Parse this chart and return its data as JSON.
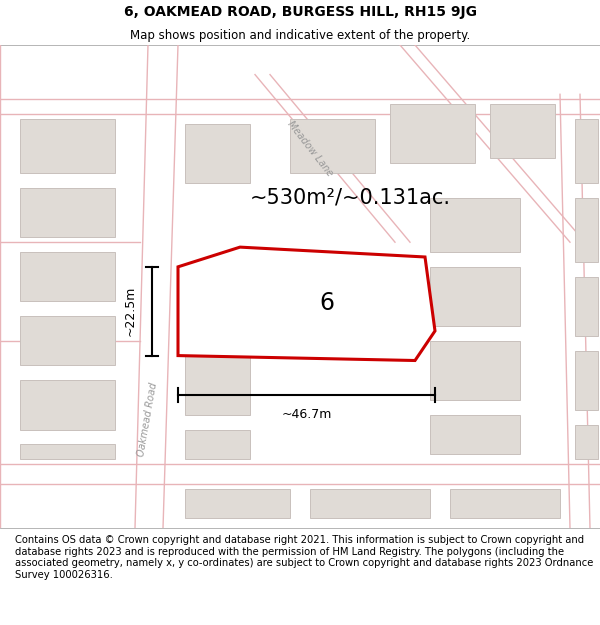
{
  "title": "6, OAKMEAD ROAD, BURGESS HILL, RH15 9JG",
  "subtitle": "Map shows position and indicative extent of the property.",
  "footer": "Contains OS data © Crown copyright and database right 2021. This information is subject to Crown copyright and database rights 2023 and is reproduced with the permission of HM Land Registry. The polygons (including the associated geometry, namely x, y co-ordinates) are subject to Crown copyright and database rights 2023 Ordnance Survey 100026316.",
  "map_bg": "#f7f5f3",
  "road_line_color": "#e8b4b8",
  "building_fill": "#e0dbd6",
  "building_edge": "#c8c0bc",
  "highlight_color": "#cc0000",
  "area_label": "~530m²/~0.131ac.",
  "width_label": "~46.7m",
  "height_label": "~22.5m",
  "plot_number": "6",
  "road_label": "Oakmead Road",
  "lane_label": "Meadow Lane",
  "title_fontsize": 10,
  "subtitle_fontsize": 8.5,
  "footer_fontsize": 7.2,
  "area_fontsize": 15,
  "dim_fontsize": 9,
  "road_label_fontsize": 7,
  "plot_num_fontsize": 17
}
